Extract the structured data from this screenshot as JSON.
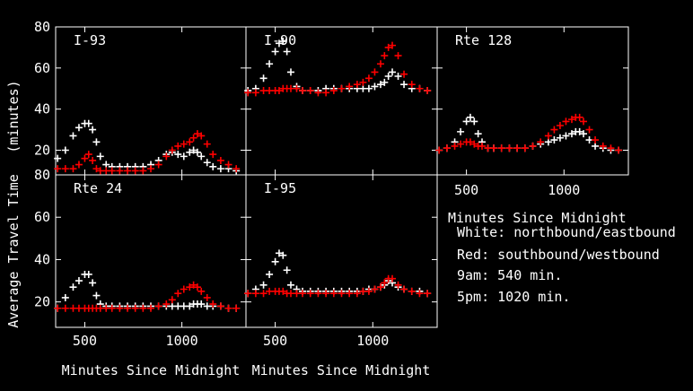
{
  "chart_data": {
    "type": "scatter",
    "ylabel": "Average Travel Time",
    "ylabel_units": "(minutes)",
    "xlabel": "Minutes Since Midnight",
    "xlim": [
      350,
      1330
    ],
    "ylim": [
      8,
      80
    ],
    "x_ticks": [
      "500",
      "1000"
    ],
    "y_ticks": [
      "20",
      "40",
      "60",
      "80"
    ],
    "colors": {
      "northbound": "#ffffff",
      "southbound": "#ff0000"
    },
    "x": [
      360,
      400,
      440,
      470,
      500,
      520,
      540,
      560,
      580,
      610,
      640,
      680,
      720,
      760,
      800,
      840,
      880,
      920,
      950,
      980,
      1010,
      1040,
      1060,
      1080,
      1100,
      1130,
      1160,
      1200,
      1240,
      1280
    ],
    "panels": [
      {
        "title": "I-93",
        "series": [
          {
            "direction": "northbound",
            "values": [
              16,
              20,
              27,
              31,
              33,
              33,
              30,
              24,
              17,
              13,
              12,
              12,
              12,
              12,
              12,
              13,
              15,
              18,
              19,
              18,
              17,
              19,
              20,
              19,
              17,
              14,
              12,
              11,
              11,
              10
            ]
          },
          {
            "direction": "southbound",
            "values": [
              11,
              11,
              11,
              13,
              16,
              18,
              15,
              11,
              10,
              10,
              10,
              10,
              10,
              10,
              10,
              11,
              13,
              17,
              20,
              22,
              23,
              24,
              26,
              28,
              27,
              23,
              18,
              15,
              13,
              11
            ]
          }
        ]
      },
      {
        "title": "I-90",
        "series": [
          {
            "direction": "northbound",
            "values": [
              49,
              50,
              55,
              62,
              68,
              72,
              73,
              68,
              58,
              51,
              49,
              49,
              49,
              50,
              50,
              50,
              50,
              50,
              50,
              50,
              51,
              52,
              53,
              56,
              58,
              56,
              52,
              50,
              50,
              49
            ]
          },
          {
            "direction": "southbound",
            "values": [
              48,
              48,
              49,
              49,
              49,
              49,
              50,
              50,
              50,
              50,
              49,
              49,
              48,
              48,
              49,
              50,
              51,
              52,
              53,
              55,
              58,
              62,
              66,
              70,
              71,
              66,
              57,
              52,
              50,
              49
            ]
          }
        ]
      },
      {
        "title": "Rte 128",
        "series": [
          {
            "direction": "northbound",
            "values": [
              20,
              21,
              24,
              29,
              34,
              36,
              34,
              28,
              24,
              21,
              21,
              21,
              21,
              21,
              21,
              22,
              23,
              24,
              25,
              26,
              27,
              28,
              29,
              29,
              28,
              25,
              22,
              21,
              20,
              20
            ]
          },
          {
            "direction": "southbound",
            "values": [
              20,
              21,
              22,
              23,
              24,
              24,
              23,
              22,
              22,
              21,
              21,
              21,
              21,
              21,
              21,
              22,
              24,
              27,
              30,
              32,
              34,
              35,
              36,
              36,
              34,
              30,
              25,
              22,
              21,
              20
            ]
          }
        ]
      },
      {
        "title": "Rte 24",
        "series": [
          {
            "direction": "northbound",
            "values": [
              17,
              22,
              27,
              30,
              33,
              33,
              29,
              23,
              19,
              18,
              18,
              18,
              18,
              18,
              18,
              18,
              18,
              18,
              18,
              18,
              18,
              18,
              19,
              19,
              19,
              18,
              18,
              18,
              17,
              17
            ]
          },
          {
            "direction": "southbound",
            "values": [
              17,
              17,
              17,
              17,
              17,
              17,
              17,
              17,
              17,
              17,
              17,
              17,
              17,
              17,
              17,
              17,
              18,
              19,
              21,
              24,
              26,
              27,
              28,
              27,
              25,
              22,
              19,
              18,
              17,
              17
            ]
          }
        ]
      },
      {
        "title": "I-95",
        "series": [
          {
            "direction": "northbound",
            "values": [
              24,
              26,
              28,
              33,
              39,
              43,
              42,
              35,
              28,
              26,
              25,
              25,
              25,
              25,
              25,
              25,
              25,
              25,
              25,
              26,
              26,
              27,
              28,
              30,
              29,
              27,
              26,
              25,
              25,
              24
            ]
          },
          {
            "direction": "southbound",
            "values": [
              24,
              24,
              24,
              25,
              25,
              25,
              25,
              24,
              24,
              24,
              24,
              24,
              24,
              24,
              24,
              24,
              24,
              24,
              25,
              25,
              26,
              27,
              29,
              31,
              31,
              28,
              26,
              25,
              24,
              24
            ]
          }
        ]
      }
    ],
    "legend": {
      "title": "Minutes Since Midnight",
      "lines": [
        "White: northbound/eastbound",
        "Red: southbound/westbound",
        "9am: 540 min.",
        "5pm: 1020 min."
      ]
    }
  }
}
